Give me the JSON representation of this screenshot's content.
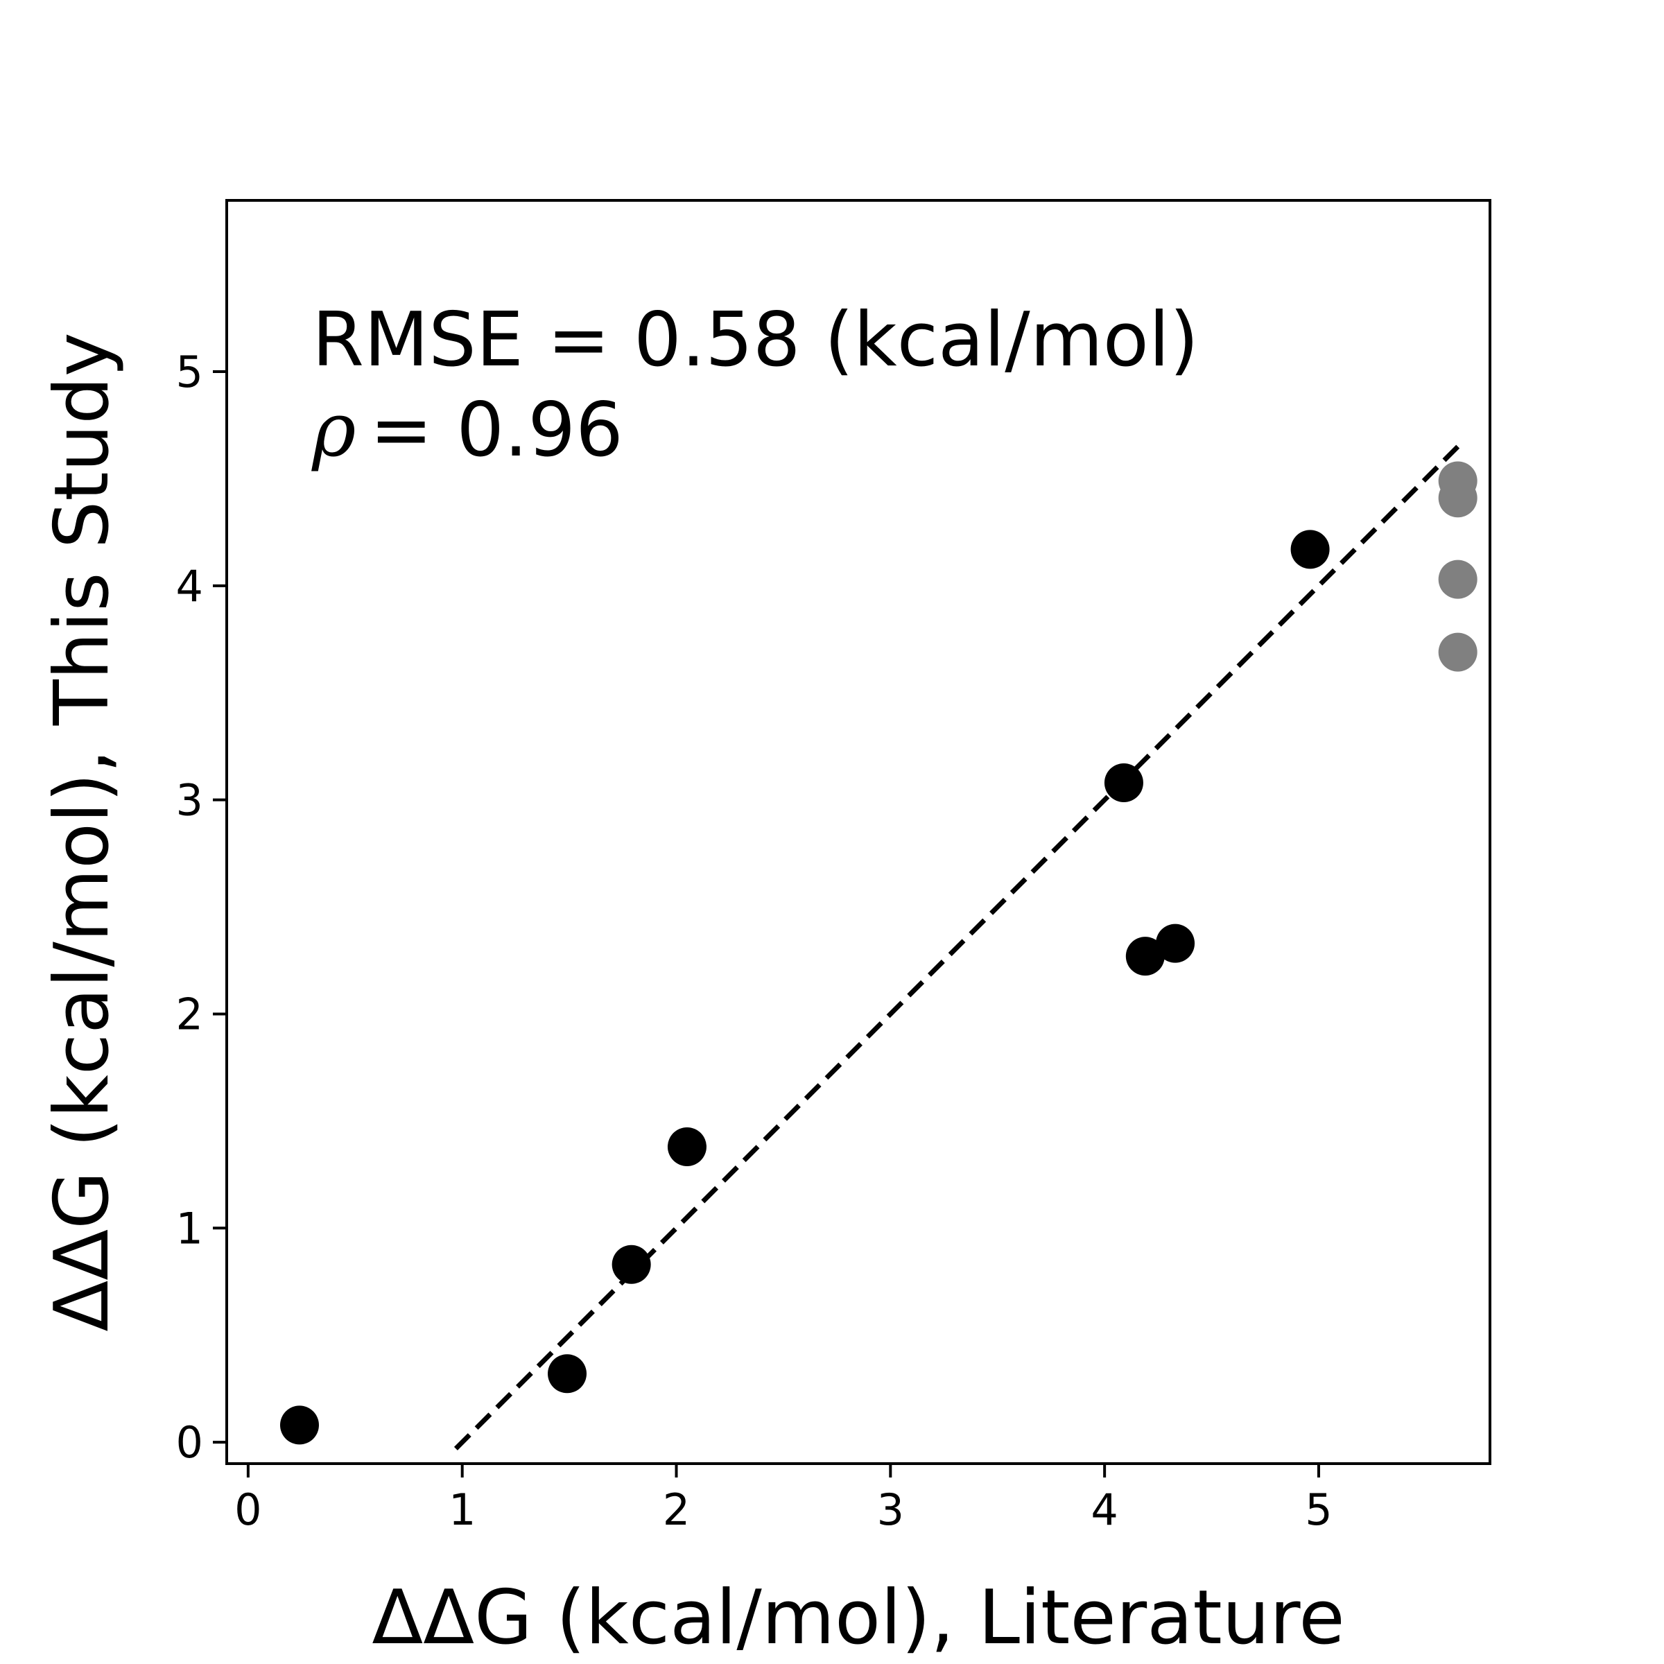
{
  "chart_data": {
    "type": "scatter",
    "xlabel": "ΔΔG (kcal/mol), Literature",
    "ylabel": "ΔΔG (kcal/mol), This Study",
    "xlim": [
      -0.1,
      5.8
    ],
    "ylim": [
      -0.1,
      5.8
    ],
    "x_ticks": [
      0,
      1,
      2,
      3,
      4,
      5
    ],
    "y_ticks": [
      0,
      1,
      2,
      3,
      4,
      5
    ],
    "grid": false,
    "annotations": {
      "rmse": "RMSE = 0.58 (kcal/mol)",
      "rho_symbol": "ρ",
      "rho_value": "= 0.96"
    },
    "fit_line": {
      "style": "dashed",
      "color": "#000000",
      "slope": 1.0,
      "intercept": -1.0,
      "x_range": [
        0.97,
        5.65
      ]
    },
    "series": [
      {
        "color": "#000000",
        "points": [
          {
            "x": 0.24,
            "y": 0.08
          },
          {
            "x": 1.49,
            "y": 0.32
          },
          {
            "x": 1.79,
            "y": 0.83
          },
          {
            "x": 2.05,
            "y": 1.38
          },
          {
            "x": 4.09,
            "y": 3.08
          },
          {
            "x": 4.19,
            "y": 2.27
          },
          {
            "x": 4.33,
            "y": 2.33
          },
          {
            "x": 4.96,
            "y": 4.17
          }
        ]
      },
      {
        "color": "#808080",
        "points": [
          {
            "x": 5.65,
            "y": 4.49
          },
          {
            "x": 5.65,
            "y": 4.41
          },
          {
            "x": 5.65,
            "y": 4.03
          },
          {
            "x": 5.65,
            "y": 3.69
          }
        ]
      }
    ]
  }
}
